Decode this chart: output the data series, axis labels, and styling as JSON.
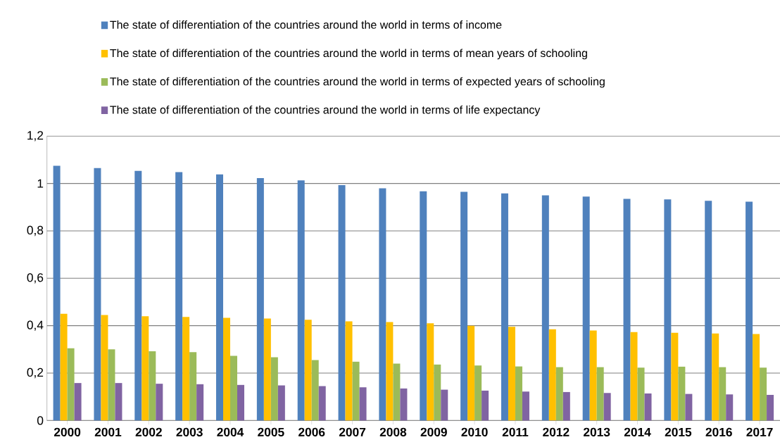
{
  "chart_data": {
    "type": "bar",
    "categories": [
      "2000",
      "2001",
      "2002",
      "2003",
      "2004",
      "2005",
      "2006",
      "2007",
      "2008",
      "2009",
      "2010",
      "2011",
      "2012",
      "2013",
      "2014",
      "2015",
      "2016",
      "2017"
    ],
    "series": [
      {
        "name": "The state of differentiation of the countries around the world in terms of income",
        "color": "#4f81bd",
        "values": [
          1.075,
          1.065,
          1.053,
          1.048,
          1.038,
          1.023,
          1.013,
          0.993,
          0.98,
          0.967,
          0.965,
          0.958,
          0.95,
          0.945,
          0.935,
          0.933,
          0.927,
          0.923
        ]
      },
      {
        "name": "The state of differentiation of the countries around the world in terms of mean years of schooling",
        "color": "#ffc000",
        "values": [
          0.45,
          0.445,
          0.44,
          0.437,
          0.433,
          0.43,
          0.425,
          0.418,
          0.415,
          0.41,
          0.4,
          0.395,
          0.385,
          0.38,
          0.373,
          0.37,
          0.367,
          0.365
        ]
      },
      {
        "name": "The state of differentiation of the countries around the world in terms of expected years of schooling",
        "color": "#9bbb59",
        "values": [
          0.305,
          0.3,
          0.292,
          0.288,
          0.273,
          0.267,
          0.255,
          0.248,
          0.24,
          0.236,
          0.232,
          0.228,
          0.225,
          0.225,
          0.223,
          0.227,
          0.225,
          0.223
        ]
      },
      {
        "name": "The state of differentiation of the countries around the world in terms of life expectancy",
        "color": "#8064a2",
        "values": [
          0.158,
          0.158,
          0.155,
          0.153,
          0.15,
          0.148,
          0.145,
          0.14,
          0.135,
          0.13,
          0.126,
          0.122,
          0.12,
          0.116,
          0.114,
          0.112,
          0.11,
          0.108
        ]
      }
    ],
    "ylim": [
      0,
      1.2
    ],
    "yticks": [
      0,
      {
        "value": 0.2,
        "label": "0,2"
      },
      {
        "value": 0.4,
        "label": "0,4"
      },
      {
        "value": 0.6,
        "label": "0,6"
      },
      {
        "value": 0.8,
        "label": "0,8"
      },
      1,
      {
        "value": 1.2,
        "label": "1,2"
      }
    ],
    "grid": "y",
    "legend": "top"
  }
}
